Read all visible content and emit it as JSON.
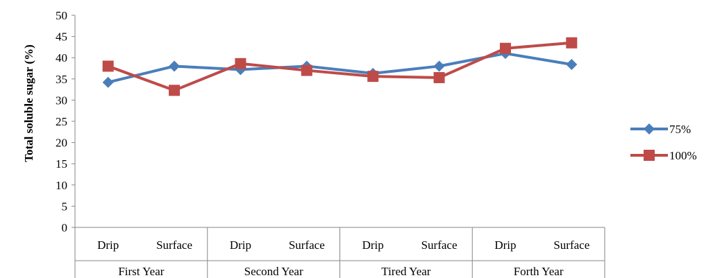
{
  "chart_data": {
    "type": "line",
    "ylabel": "Total soluble sugar  (%)",
    "ylim": [
      0,
      50
    ],
    "ytick_step": 5,
    "categories": [
      "Drip",
      "Surface",
      "Drip",
      "Surface",
      "Drip",
      "Surface",
      "Drip",
      "Surface"
    ],
    "groups": [
      "First Year",
      "Second Year",
      "Tired Year",
      "Forth Year"
    ],
    "series": [
      {
        "name": "75%",
        "color": "#4A7EBB",
        "marker": "diamond",
        "values": [
          34.2,
          38.0,
          37.2,
          38.0,
          36.3,
          38.0,
          41.0,
          38.4
        ]
      },
      {
        "name": "100%",
        "color": "#BE4B48",
        "marker": "square",
        "values": [
          38.0,
          32.3,
          38.6,
          37.0,
          35.6,
          35.3,
          42.2,
          43.5
        ]
      }
    ],
    "grid": false,
    "legend_position": "right"
  }
}
